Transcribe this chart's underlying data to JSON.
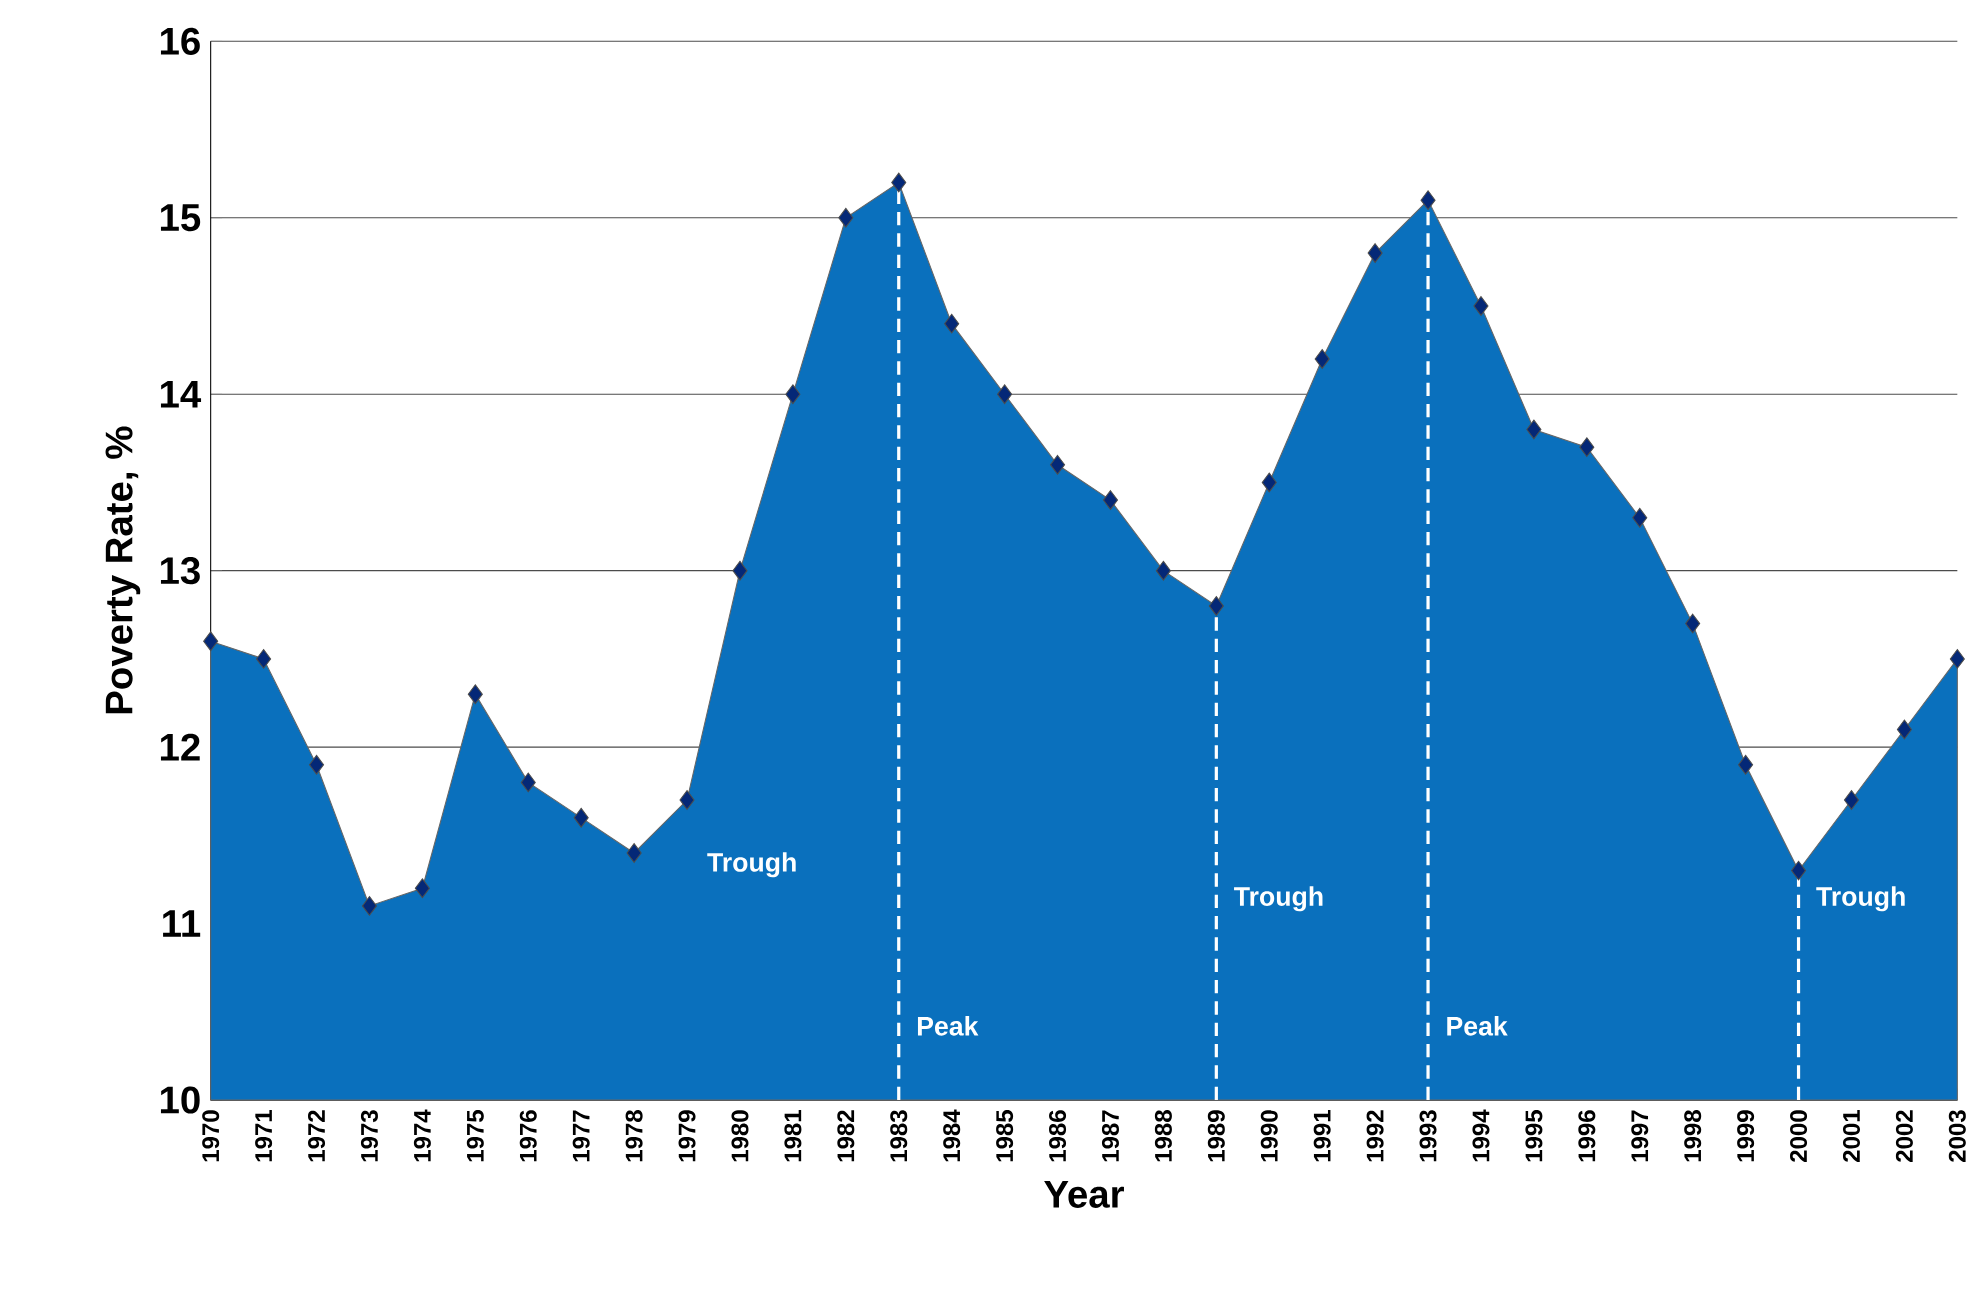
{
  "chart_data": {
    "type": "area",
    "xlabel": "Year",
    "ylabel": "Poverty Rate, %",
    "x": [
      1970,
      1971,
      1972,
      1973,
      1974,
      1975,
      1976,
      1977,
      1978,
      1979,
      1980,
      1981,
      1982,
      1983,
      1984,
      1985,
      1986,
      1987,
      1988,
      1989,
      1990,
      1991,
      1992,
      1993,
      1994,
      1995,
      1996,
      1997,
      1998,
      1999,
      2000,
      2001,
      2002,
      2003
    ],
    "values": [
      12.6,
      12.5,
      11.9,
      11.1,
      11.2,
      12.3,
      11.8,
      11.6,
      11.4,
      11.7,
      13.0,
      14.0,
      15.0,
      15.2,
      14.4,
      14.0,
      13.6,
      13.4,
      13.0,
      12.8,
      13.5,
      14.2,
      14.8,
      15.1,
      14.5,
      13.8,
      13.7,
      13.3,
      12.7,
      11.9,
      11.3,
      11.7,
      12.1,
      12.5
    ],
    "color": "#0a70bd",
    "marker": "diamond",
    "xlim": [
      1970,
      2003
    ],
    "xticks": [
      1970,
      1971,
      1972,
      1973,
      1974,
      1975,
      1976,
      1977,
      1978,
      1979,
      1980,
      1981,
      1982,
      1983,
      1984,
      1985,
      1986,
      1987,
      1988,
      1989,
      1990,
      1991,
      1992,
      1993,
      1994,
      1995,
      1996,
      1997,
      1998,
      1999,
      2000,
      2001,
      2002,
      2003
    ],
    "ylim": [
      10,
      16
    ],
    "yticks": [
      10,
      11,
      12,
      13,
      14,
      15,
      16
    ],
    "grid": "y",
    "ref_lines": [
      {
        "axis": "x",
        "value": 1983,
        "label": "Peak",
        "color": "#ffffff",
        "line_style": "dashed"
      },
      {
        "axis": "x",
        "value": 1989,
        "label": "Trough",
        "color": "#ffffff",
        "line_style": "dashed"
      },
      {
        "axis": "x",
        "value": 1993,
        "label": "Peak",
        "color": "#ffffff",
        "line_style": "dashed"
      },
      {
        "axis": "x",
        "value": 2000,
        "label": "Trough",
        "color": "#ffffff",
        "line_style": "dashed"
      }
    ],
    "annotations": [
      "Trough"
    ]
  }
}
